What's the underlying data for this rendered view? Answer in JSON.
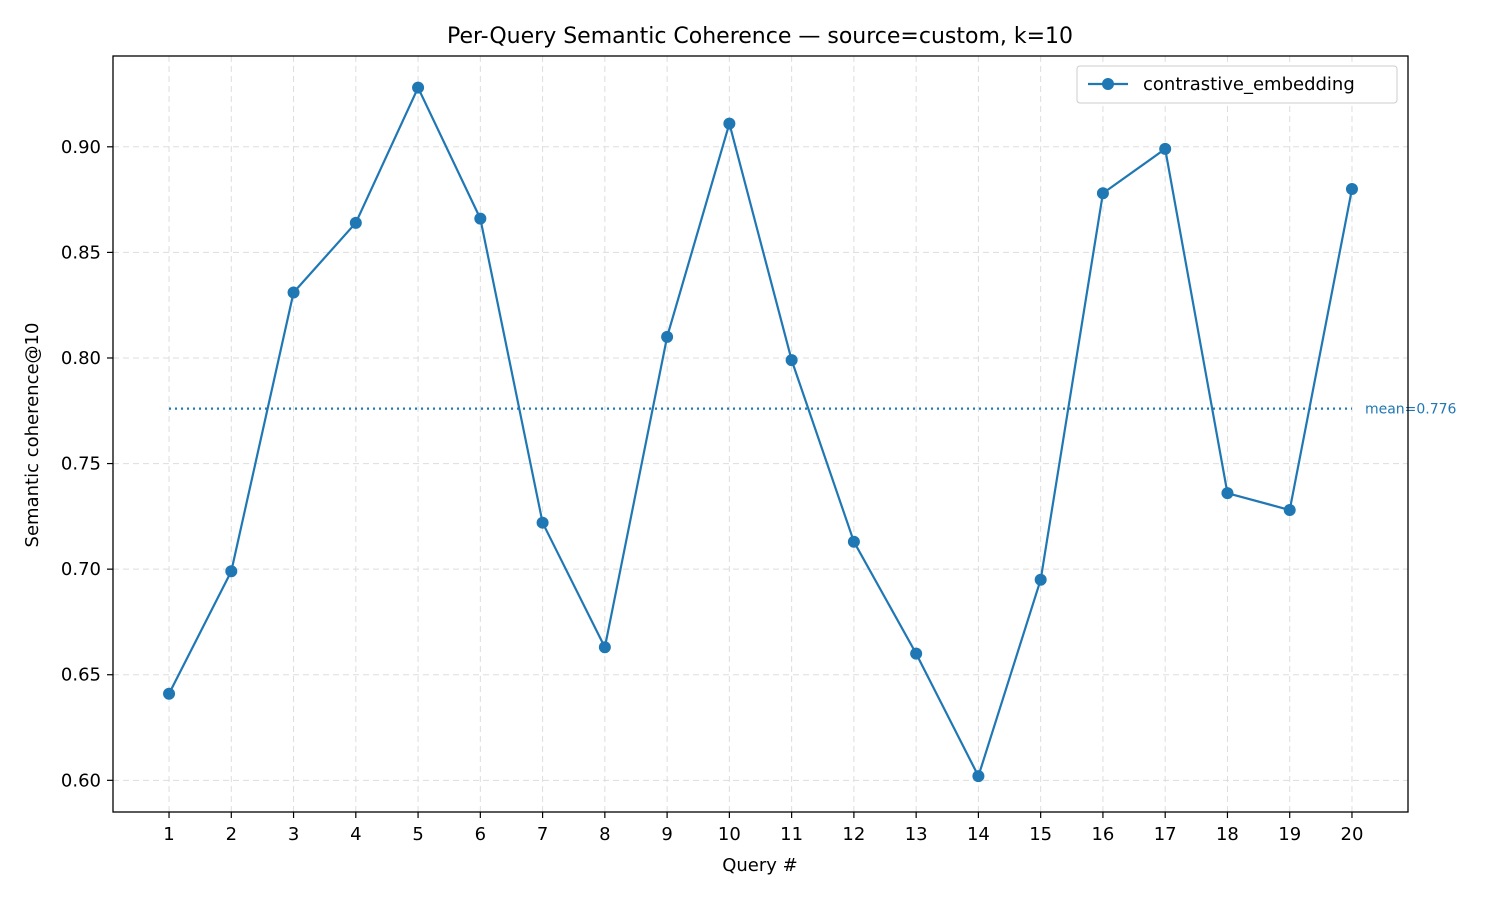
{
  "chart_data": {
    "type": "line",
    "title": "Per-Query Semantic Coherence — source=custom, k=10",
    "xlabel": "Query #",
    "ylabel": "Semantic coherence@10",
    "x": [
      1,
      2,
      3,
      4,
      5,
      6,
      7,
      8,
      9,
      10,
      11,
      12,
      13,
      14,
      15,
      16,
      17,
      18,
      19,
      20
    ],
    "series": [
      {
        "name": "contrastive_embedding",
        "color": "#1f77b4",
        "values": [
          0.641,
          0.699,
          0.831,
          0.864,
          0.928,
          0.866,
          0.722,
          0.663,
          0.81,
          0.911,
          0.799,
          0.713,
          0.66,
          0.602,
          0.695,
          0.878,
          0.899,
          0.736,
          0.728,
          0.88
        ]
      }
    ],
    "mean": {
      "value": 0.776,
      "label": "mean=0.776",
      "color": "#1f77b4"
    },
    "xlim": [
      0.1,
      20.9
    ],
    "ylim": [
      0.585,
      0.943
    ],
    "xticks": [
      "1",
      "2",
      "3",
      "4",
      "5",
      "6",
      "7",
      "8",
      "9",
      "10",
      "11",
      "12",
      "13",
      "14",
      "15",
      "16",
      "17",
      "18",
      "19",
      "20"
    ],
    "yticks": [
      0.6,
      0.65,
      0.7,
      0.75,
      0.8,
      0.85,
      0.9
    ],
    "ytick_labels": [
      "0.60",
      "0.65",
      "0.70",
      "0.75",
      "0.80",
      "0.85",
      "0.90"
    ],
    "grid": true,
    "legend_position": "top-right"
  }
}
